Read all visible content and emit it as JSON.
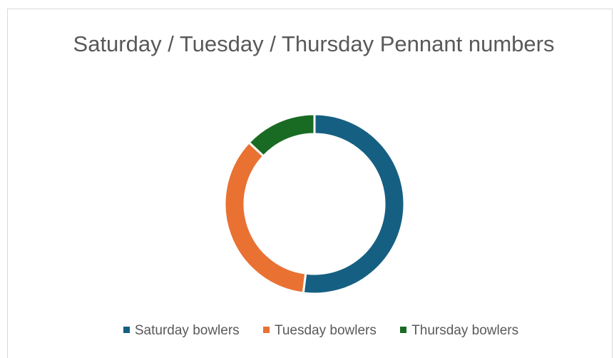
{
  "chart_data": {
    "type": "pie",
    "variant": "doughnut",
    "title": "Saturday / Tuesday / Thursday Pennant numbers",
    "categories": [
      "Saturday bowlers",
      "Tuesday bowlers",
      "Thursday bowlers"
    ],
    "values": [
      52,
      35,
      13
    ],
    "colors": [
      "#156082",
      "#e97132",
      "#196b24"
    ],
    "legend_position": "bottom"
  }
}
